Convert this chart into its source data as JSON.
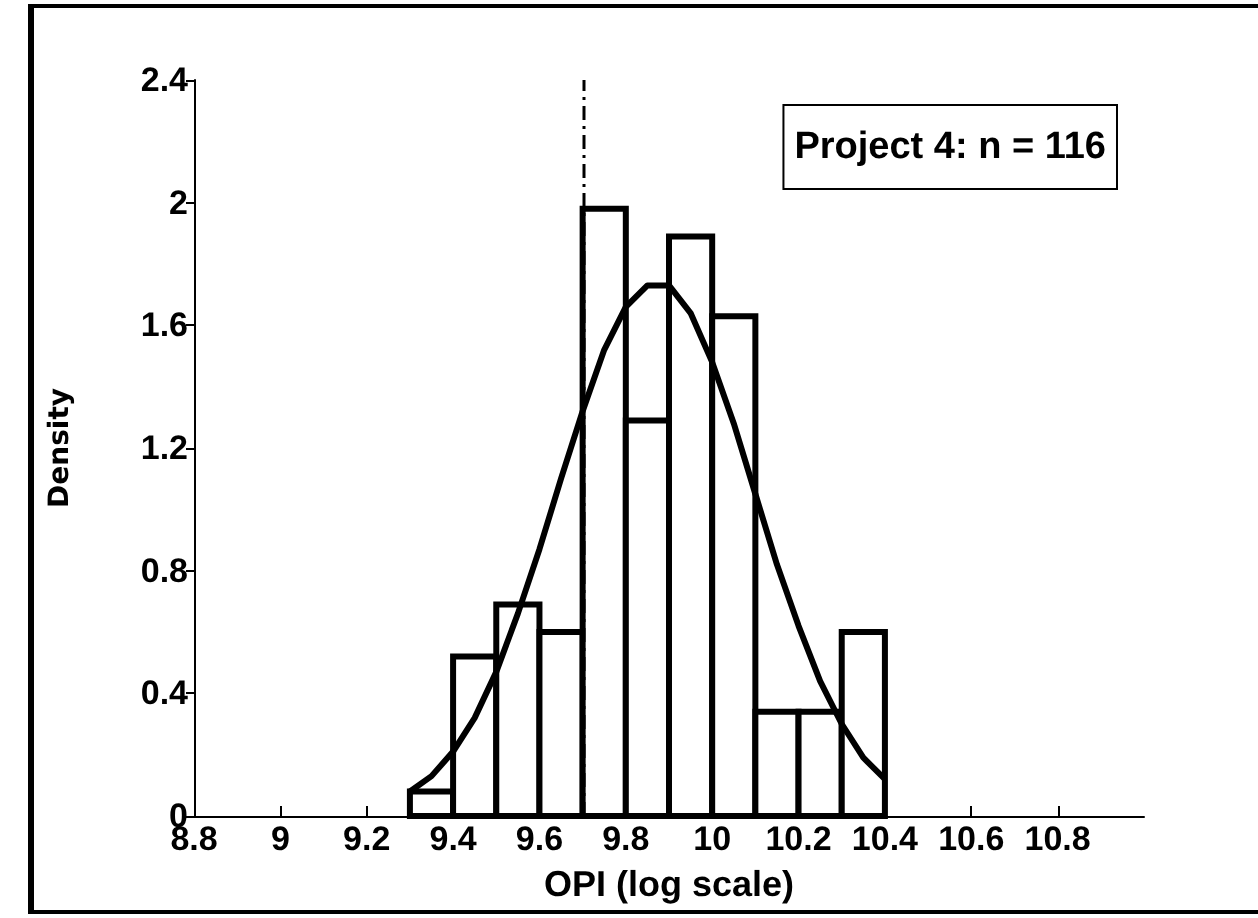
{
  "chart_data": {
    "type": "histogram",
    "xlabel": "OPI (log scale)",
    "ylabel": "Density",
    "bins": [
      9.3,
      9.4,
      9.5,
      9.6,
      9.7,
      9.8,
      9.9,
      10.0,
      10.1,
      10.2,
      10.3,
      10.4
    ],
    "values": [
      0.08,
      0.52,
      0.69,
      0.6,
      1.98,
      1.29,
      1.89,
      1.63,
      0.34,
      0.34,
      0.6
    ],
    "color": "#000000",
    "series": [
      {
        "type": "line",
        "color": "#000000",
        "x": [
          9.3,
          9.35,
          9.4,
          9.45,
          9.5,
          9.55,
          9.6,
          9.65,
          9.7,
          9.75,
          9.8,
          9.85,
          9.9,
          9.95,
          10.0,
          10.05,
          10.1,
          10.15,
          10.2,
          10.25,
          10.3,
          10.35,
          10.4
        ],
        "values": [
          0.08,
          0.13,
          0.21,
          0.32,
          0.47,
          0.66,
          0.87,
          1.1,
          1.32,
          1.52,
          1.66,
          1.73,
          1.73,
          1.64,
          1.48,
          1.28,
          1.05,
          0.82,
          0.62,
          0.44,
          0.3,
          0.19,
          0.12
        ]
      }
    ],
    "ref_lines": [
      {
        "axis": "x",
        "value": 9.7,
        "color": "#000000",
        "line_style": "dashed"
      }
    ],
    "annotations": [
      "Project 4: n = 116"
    ],
    "xlim": [
      8.8,
      11.0
    ],
    "ylim": [
      0,
      2.4
    ],
    "xticks": [
      8.8,
      9,
      9.2,
      9.4,
      9.6,
      9.8,
      10,
      10.2,
      10.4,
      10.6,
      10.8
    ],
    "yticks": [
      0,
      0.4,
      0.8,
      1.2,
      1.6,
      2,
      2.4
    ],
    "grid": false,
    "marker": "none",
    "line_style": "solid"
  }
}
